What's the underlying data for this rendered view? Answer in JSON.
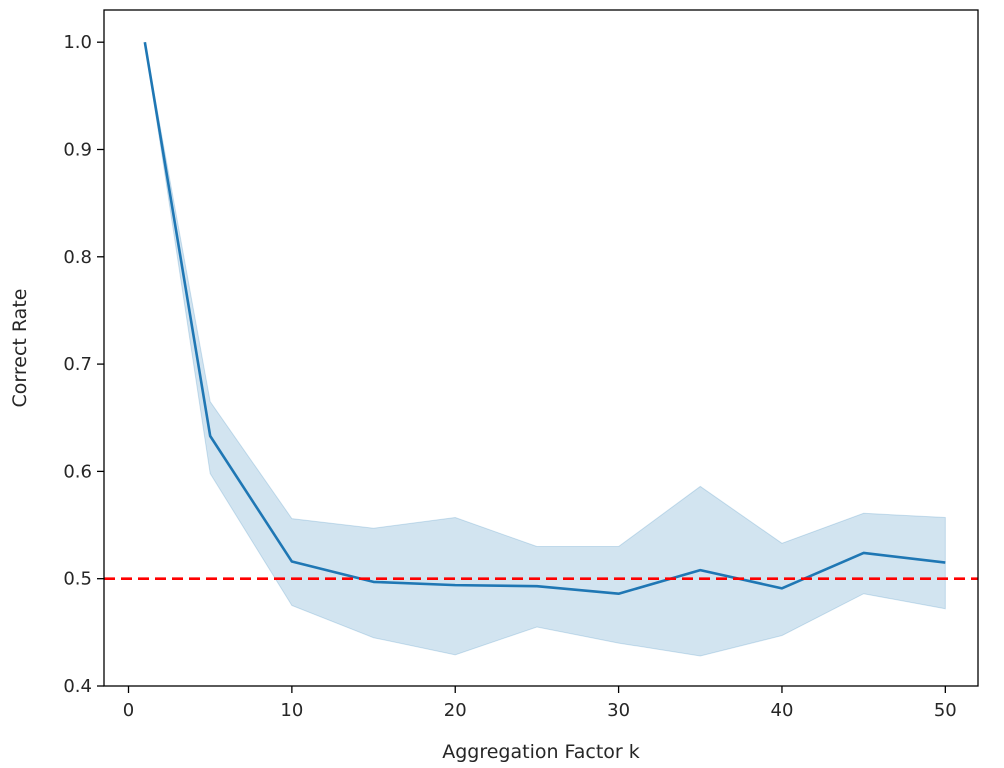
{
  "chart_data": {
    "type": "line",
    "title": "",
    "xlabel": "Aggregation Factor k",
    "ylabel": "Correct Rate",
    "xlim": [
      -1.5,
      52
    ],
    "ylim": [
      0.4,
      1.03
    ],
    "xticks": [
      0,
      10,
      20,
      30,
      40,
      50
    ],
    "xtick_labels": [
      "0",
      "10",
      "20",
      "30",
      "40",
      "50"
    ],
    "yticks": [
      0.4,
      0.5,
      0.6,
      0.7,
      0.8,
      0.9,
      1.0
    ],
    "ytick_labels": [
      "0.4",
      "0.5",
      "0.6",
      "0.7",
      "0.8",
      "0.9",
      "1.0"
    ],
    "grid": false,
    "legend": "none",
    "series": [
      {
        "x": [
          1,
          5,
          10,
          15,
          20,
          25,
          30,
          35,
          40,
          45,
          50
        ],
        "values": [
          1.0,
          0.633,
          0.516,
          0.497,
          0.494,
          0.493,
          0.486,
          0.508,
          0.491,
          0.524,
          0.515
        ],
        "ci_upper": [
          1.0,
          0.665,
          0.556,
          0.547,
          0.557,
          0.53,
          0.53,
          0.586,
          0.533,
          0.561,
          0.557
        ],
        "ci_lower": [
          1.0,
          0.598,
          0.475,
          0.445,
          0.429,
          0.455,
          0.44,
          0.428,
          0.447,
          0.486,
          0.472
        ],
        "color": "#1f77b4",
        "band_color": "#1f77b4"
      }
    ],
    "reference_line": {
      "y": 0.5,
      "color": "#ff0000",
      "style": "dashed"
    }
  }
}
